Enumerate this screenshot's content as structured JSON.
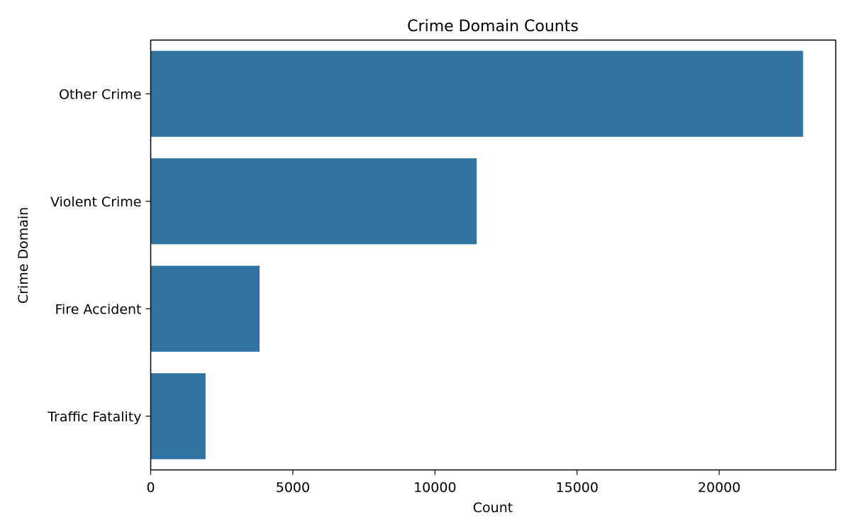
{
  "chart_data": {
    "type": "bar",
    "orientation": "horizontal",
    "title": "Crime Domain Counts",
    "xlabel": "Count",
    "ylabel": "Crime Domain",
    "categories": [
      "Other Crime",
      "Violent Crime",
      "Fire Accident",
      "Traffic Fatality"
    ],
    "values": [
      22950,
      11470,
      3830,
      1930
    ],
    "xlim": [
      0,
      24100
    ],
    "xticks": [
      0,
      5000,
      10000,
      15000,
      20000
    ],
    "grid": false,
    "legend": "none",
    "bar_color": "#3274a1"
  }
}
